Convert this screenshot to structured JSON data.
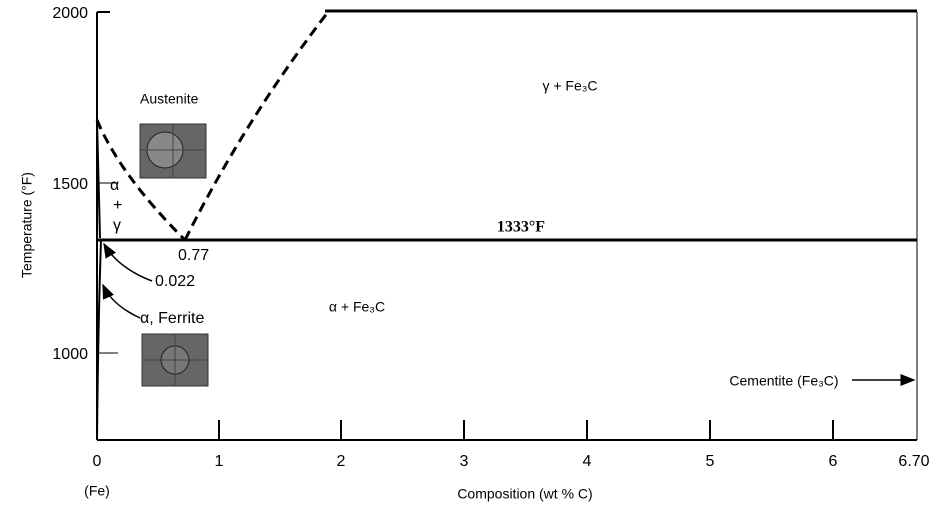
{
  "axes": {
    "y_label": "Temperature (°F)",
    "x_label": "Composition (wt % C)",
    "fe_label": "(Fe)",
    "y_ticks": [
      "2000",
      "1500",
      "1000"
    ],
    "x_ticks": [
      "0",
      "1",
      "2",
      "3",
      "4",
      "5",
      "6",
      "6.70"
    ]
  },
  "regions": {
    "austenite": "Austenite",
    "gamma_cementite": "γ + Fe₃C",
    "alpha_cementite": "α + Fe₃C",
    "alpha_gamma": [
      "α",
      "+",
      "γ"
    ]
  },
  "annotations": {
    "eutectoid_composition": "0.77",
    "max_ferrite_solubility": "0.022",
    "ferrite": "α, Ferrite",
    "eutectoid_temperature": "1333°F",
    "cementite": "Cementite (Fe₃C)"
  }
}
